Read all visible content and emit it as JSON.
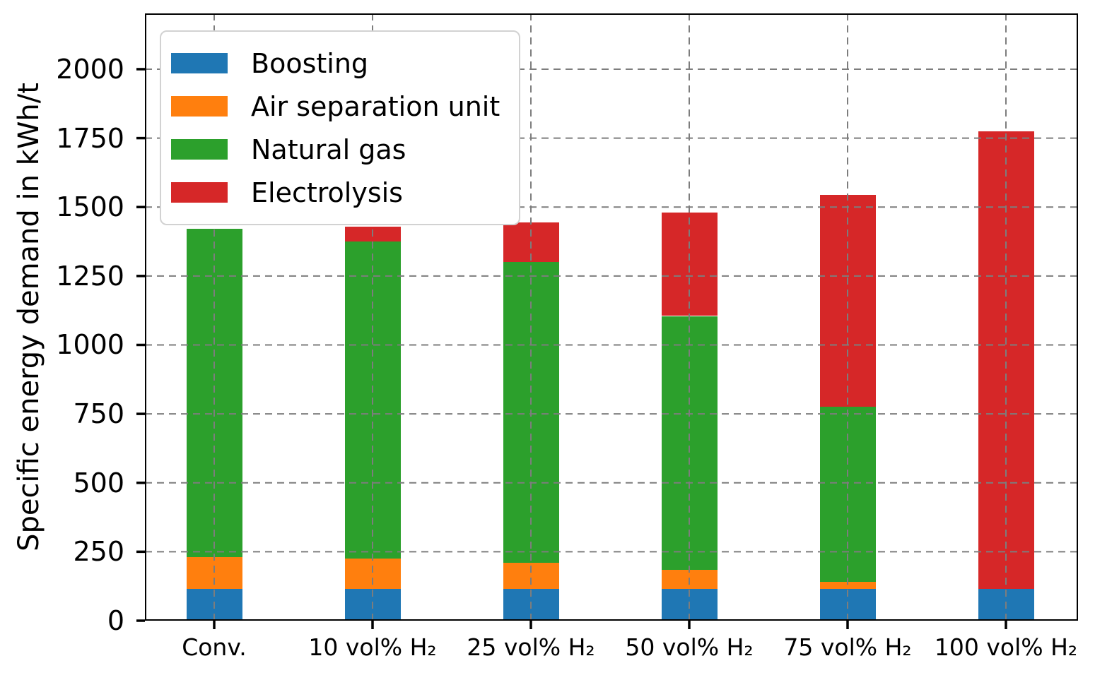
{
  "chart_data": {
    "type": "bar",
    "stacked": true,
    "title": "",
    "xlabel": "",
    "ylabel": "Specific energy demand in kWh/t",
    "ylim": [
      0,
      2200
    ],
    "yticks": [
      0,
      250,
      500,
      750,
      1000,
      1250,
      1500,
      1750,
      2000
    ],
    "grid": "dashed, both axes, drawn above bars",
    "legend_position": "upper left",
    "categories": [
      "Conv.",
      "10 vol% H₂",
      "25 vol% H₂",
      "50 vol% H₂",
      "75 vol% H₂",
      "100 vol% H₂"
    ],
    "series": [
      {
        "name": "Boosting",
        "color": "#1f77b4",
        "values": [
          115,
          115,
          115,
          115,
          115,
          115
        ]
      },
      {
        "name": "Air separation unit",
        "color": "#ff7f0e",
        "values": [
          115,
          110,
          95,
          70,
          25,
          0
        ]
      },
      {
        "name": "Natural gas",
        "color": "#2ca02c",
        "values": [
          1190,
          1150,
          1090,
          920,
          635,
          0
        ]
      },
      {
        "name": "Electrolysis",
        "color": "#d62728",
        "values": [
          0,
          55,
          145,
          375,
          770,
          1660
        ]
      }
    ],
    "stack_totals_kwh_per_t": [
      1420,
      1430,
      1445,
      1480,
      1545,
      1775
    ]
  },
  "style": {
    "background": "#ffffff",
    "axis_color": "#000000",
    "grid_color": "#7d7d7d",
    "legend_border_color": "#d2d2d2"
  }
}
